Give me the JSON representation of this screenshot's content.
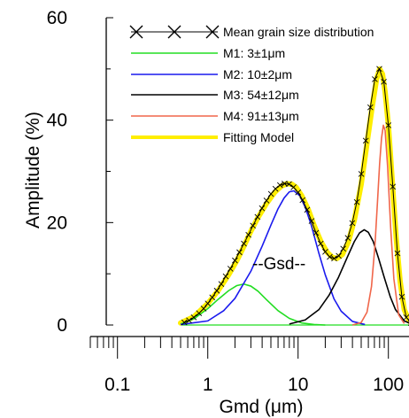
{
  "chart_data": {
    "type": "line",
    "xlabel": "Gmd (μm)",
    "ylabel": "Amplitude (%)",
    "x_scale": "log",
    "xlim": [
      0.05,
      200
    ],
    "ylim": [
      0,
      60
    ],
    "x_ticks": [
      {
        "value": 0.1,
        "label": "0.1"
      },
      {
        "value": 1,
        "label": "1"
      },
      {
        "value": 10,
        "label": "10"
      },
      {
        "value": 100,
        "label": "100"
      }
    ],
    "y_ticks": [
      {
        "value": 0,
        "label": "0"
      },
      {
        "value": 20,
        "label": "20"
      },
      {
        "value": 40,
        "label": "40"
      },
      {
        "value": 60,
        "label": "60"
      }
    ],
    "annotation": "--Gsd--",
    "legend_position": "top-right",
    "series": [
      {
        "name": "Mean grain size distribution",
        "style": "markers",
        "color": "#000000",
        "marker": "x",
        "x": [
          0.55,
          0.62,
          0.7,
          0.8,
          0.9,
          1.0,
          1.12,
          1.26,
          1.41,
          1.58,
          1.78,
          2.0,
          2.24,
          2.51,
          2.82,
          3.16,
          3.55,
          3.98,
          4.47,
          5.01,
          5.62,
          6.31,
          7.08,
          7.94,
          8.91,
          10.0,
          11.2,
          12.6,
          14.1,
          15.8,
          17.8,
          20.0,
          22.4,
          25.1,
          28.2,
          31.6,
          35.5,
          39.8,
          44.7,
          50.1,
          56.2,
          63.1,
          70.8,
          79.4,
          89.1,
          100,
          112,
          126,
          141,
          158,
          178
        ],
        "y": [
          0.5,
          0.9,
          1.5,
          2.3,
          3.2,
          4.2,
          5.4,
          6.7,
          8.0,
          9.5,
          11.0,
          12.6,
          14.2,
          15.9,
          17.6,
          19.4,
          21.1,
          22.8,
          24.3,
          25.6,
          26.6,
          27.3,
          27.6,
          27.5,
          26.9,
          25.9,
          24.4,
          22.5,
          20.3,
          18.0,
          15.9,
          14.3,
          13.3,
          13.0,
          13.5,
          14.9,
          17.0,
          19.9,
          24.0,
          29.5,
          36.0,
          42.5,
          48.0,
          50.0,
          47.5,
          39.0,
          27.0,
          14.0,
          5.5,
          1.5,
          0.4
        ]
      },
      {
        "name": "M1: 3±1μm",
        "style": "line",
        "color": "#22dd22",
        "x": [
          0.5,
          0.7,
          1.0,
          1.3,
          1.7,
          2.1,
          2.5,
          3.0,
          3.6,
          4.5,
          6.0,
          8.0,
          11,
          15,
          20
        ],
        "y": [
          0.2,
          1.2,
          3.2,
          5.0,
          6.7,
          7.7,
          8.0,
          7.6,
          6.6,
          4.9,
          2.8,
          1.3,
          0.4,
          0.1,
          0
        ]
      },
      {
        "name": "M2: 10±2μm",
        "style": "line",
        "color": "#1a1aee",
        "x": [
          0.5,
          1.0,
          1.5,
          2.0,
          3.0,
          4.0,
          5.0,
          6.0,
          7.0,
          8.0,
          9.0,
          10.5,
          12,
          14,
          17,
          20,
          25,
          30,
          40,
          55
        ],
        "y": [
          0.1,
          0.8,
          2.8,
          5.2,
          10.5,
          15.4,
          19.5,
          22.7,
          24.8,
          26.0,
          26.2,
          25.2,
          23.0,
          19.5,
          14.0,
          9.8,
          5.1,
          2.7,
          0.7,
          0.1
        ]
      },
      {
        "name": "M3: 54±12μm",
        "style": "line",
        "color": "#000000",
        "x": [
          8,
          12,
          17,
          22,
          28,
          35,
          42,
          48,
          54,
          60,
          68,
          78,
          90,
          105,
          120,
          150,
          180
        ],
        "y": [
          0.2,
          1.0,
          3.0,
          5.8,
          9.3,
          13.2,
          16.3,
          18.0,
          18.6,
          18.1,
          16.3,
          13.0,
          9.3,
          5.5,
          3.0,
          0.8,
          0.2
        ]
      },
      {
        "name": "M4: 91±13μm",
        "style": "line",
        "color": "#f0664a",
        "x": [
          40,
          50,
          58,
          65,
          71,
          76,
          80,
          84,
          88,
          92,
          98,
          106,
          115,
          130,
          150
        ],
        "y": [
          0,
          0.5,
          2.5,
          7.5,
          15.5,
          24.5,
          31.5,
          36.5,
          39.0,
          38.0,
          31.0,
          19.0,
          9.0,
          2.0,
          0.3
        ]
      },
      {
        "name": "Fitting Model",
        "style": "line",
        "color": "#ffee00",
        "x": [
          0.5,
          0.7,
          1.0,
          1.3,
          1.7,
          2.1,
          2.5,
          3.0,
          3.6,
          4.5,
          5.5,
          6.5,
          7.5,
          8.5,
          9.5,
          11,
          13,
          15,
          18,
          21,
          24,
          27,
          31,
          36,
          42,
          50,
          58,
          66,
          74,
          80,
          86,
          92,
          100,
          110,
          122,
          135,
          150,
          170,
          185
        ],
        "y": [
          0.4,
          1.6,
          4.2,
          6.7,
          9.8,
          12.6,
          15.3,
          18.3,
          21.0,
          23.8,
          25.9,
          27.1,
          27.6,
          27.5,
          26.9,
          25.2,
          22.5,
          19.5,
          16.2,
          14.2,
          13.2,
          13.0,
          13.8,
          16.2,
          20.5,
          27.5,
          35.5,
          42.5,
          48.0,
          50.0,
          49.0,
          45.5,
          39.0,
          28.5,
          17.0,
          8.5,
          3.0,
          0.8,
          0.2
        ]
      }
    ]
  }
}
